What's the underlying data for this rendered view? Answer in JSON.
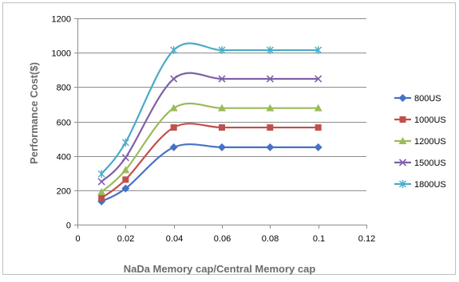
{
  "chart_data": {
    "type": "line",
    "title": "",
    "xlabel": "NaDa Memory cap/Central Memory cap",
    "ylabel": "Performance Cost($)",
    "xlim": [
      0,
      0.12
    ],
    "ylim": [
      0,
      1200
    ],
    "xticks": [
      0,
      0.02,
      0.04,
      0.06,
      0.08,
      0.1,
      0.12
    ],
    "xtick_labels": [
      "0",
      "0.02",
      "0.04",
      "0.06",
      "0.08",
      "0.1",
      "0.12"
    ],
    "yticks": [
      0,
      200,
      400,
      600,
      800,
      1000,
      1200
    ],
    "ytick_labels": [
      "0",
      "200",
      "400",
      "600",
      "800",
      "1000",
      "1200"
    ],
    "grid": "horizontal",
    "legend_position": "right",
    "smoothed": true,
    "x": [
      0.01,
      0.02,
      0.04,
      0.06,
      0.08,
      0.1
    ],
    "series": [
      {
        "name": "800US",
        "color": "#4472c4",
        "marker": "diamond",
        "values": [
          135,
          210,
          450,
          450,
          450,
          450
        ]
      },
      {
        "name": "1000US",
        "color": "#c0504d",
        "marker": "square",
        "values": [
          155,
          262,
          565,
          565,
          565,
          565
        ]
      },
      {
        "name": "1200US",
        "color": "#9bbb59",
        "marker": "triangle",
        "values": [
          190,
          318,
          678,
          678,
          678,
          678
        ]
      },
      {
        "name": "1500US",
        "color": "#7f5fa8",
        "marker": "x",
        "values": [
          250,
          390,
          848,
          848,
          848,
          848
        ]
      },
      {
        "name": "1800US",
        "color": "#4bacc6",
        "marker": "star",
        "values": [
          295,
          478,
          1015,
          1015,
          1015,
          1015
        ]
      }
    ]
  }
}
